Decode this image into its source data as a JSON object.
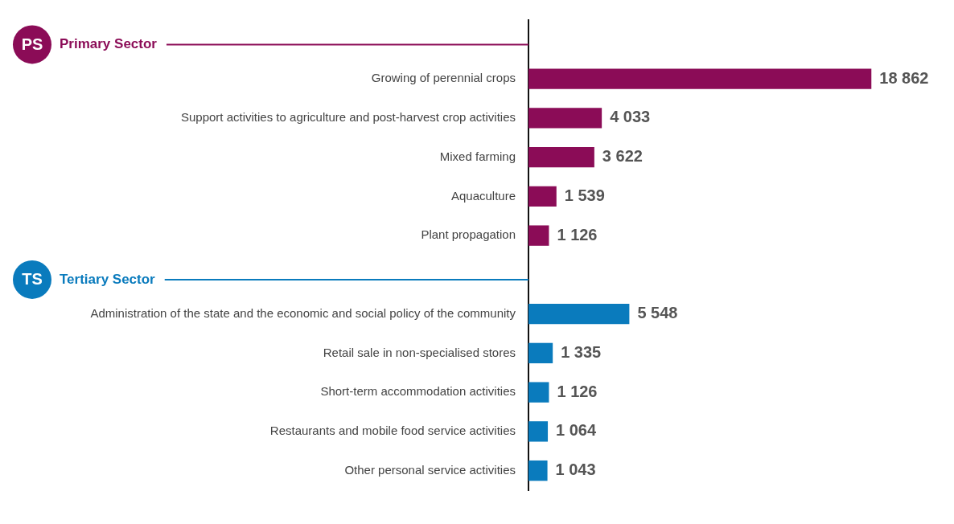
{
  "chart_data": {
    "type": "bar",
    "orientation": "horizontal",
    "legend": false,
    "categories": [
      null,
      "Growing of perennial crops",
      "Support activities to agriculture and post-harvest crop activities",
      "Mixed farming",
      "Aquaculture",
      "Plant propagation",
      null,
      "Administration of the state and the economic and social policy of the community",
      "Retail sale in non-specialised stores",
      "Short-term accommodation activities",
      "Restaurants and mobile food service activities",
      "Other personal service activities"
    ],
    "series": [
      {
        "name": "Primary Sector",
        "color": "#8b0c57",
        "values": [
          null,
          18862,
          4033,
          3622,
          1539,
          1126,
          null,
          null,
          null,
          null,
          null,
          null
        ],
        "value_labels": [
          null,
          "18 862",
          "4 033",
          "3 622",
          "1 539",
          "1 126",
          null,
          null,
          null,
          null,
          null,
          null
        ]
      },
      {
        "name": "Tertiary Sector",
        "color": "#0a7bbd",
        "values": [
          null,
          null,
          null,
          null,
          null,
          null,
          null,
          5548,
          1335,
          1126,
          1064,
          1043
        ],
        "value_labels": [
          null,
          null,
          null,
          null,
          null,
          null,
          null,
          "5 548",
          "1 335",
          "1 126",
          "1 064",
          "1 043"
        ]
      }
    ],
    "annotations": [
      "PS",
      "TS"
    ]
  }
}
